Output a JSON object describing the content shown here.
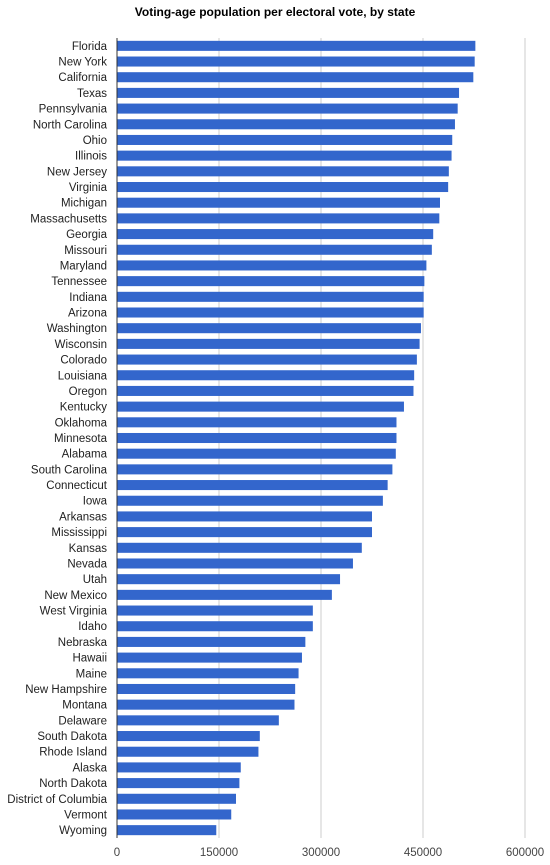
{
  "chart_data": {
    "type": "bar",
    "orientation": "horizontal",
    "title": "Voting-age population per electoral vote, by state",
    "xlabel": "",
    "ylabel": "",
    "xlim": [
      0,
      600000
    ],
    "x_ticks": [
      "0",
      "150000",
      "300000",
      "450000",
      "600000"
    ],
    "grid": true,
    "bar_color": "#3366cc",
    "categories": [
      "Florida",
      "New York",
      "California",
      "Texas",
      "Pennsylvania",
      "North Carolina",
      "Ohio",
      "Illinois",
      "New Jersey",
      "Virginia",
      "Michigan",
      "Massachusetts",
      "Georgia",
      "Missouri",
      "Maryland",
      "Tennessee",
      "Indiana",
      "Arizona",
      "Washington",
      "Wisconsin",
      "Colorado",
      "Louisiana",
      "Oregon",
      "Kentucky",
      "Oklahoma",
      "Minnesota",
      "Alabama",
      "South Carolina",
      "Connecticut",
      "Iowa",
      "Arkansas",
      "Mississippi",
      "Kansas",
      "Nevada",
      "Utah",
      "New Mexico",
      "West Virginia",
      "Idaho",
      "Nebraska",
      "Hawaii",
      "Maine",
      "New Hampshire",
      "Montana",
      "Delaware",
      "South Dakota",
      "Rhode Island",
      "Alaska",
      "North Dakota",
      "District of Columbia",
      "Vermont",
      "Wyoming"
    ],
    "values": [
      527000,
      526000,
      524000,
      503000,
      501000,
      497000,
      493000,
      492000,
      488000,
      487000,
      475000,
      474000,
      465000,
      463000,
      455000,
      452000,
      451000,
      451000,
      447000,
      445000,
      441000,
      437000,
      436000,
      422000,
      411000,
      411000,
      410000,
      405000,
      398000,
      391000,
      375000,
      375000,
      360000,
      347000,
      328000,
      316000,
      288000,
      288000,
      277000,
      272000,
      267000,
      262000,
      261000,
      238000,
      210000,
      208000,
      182000,
      180000,
      175000,
      168000,
      146000
    ]
  }
}
